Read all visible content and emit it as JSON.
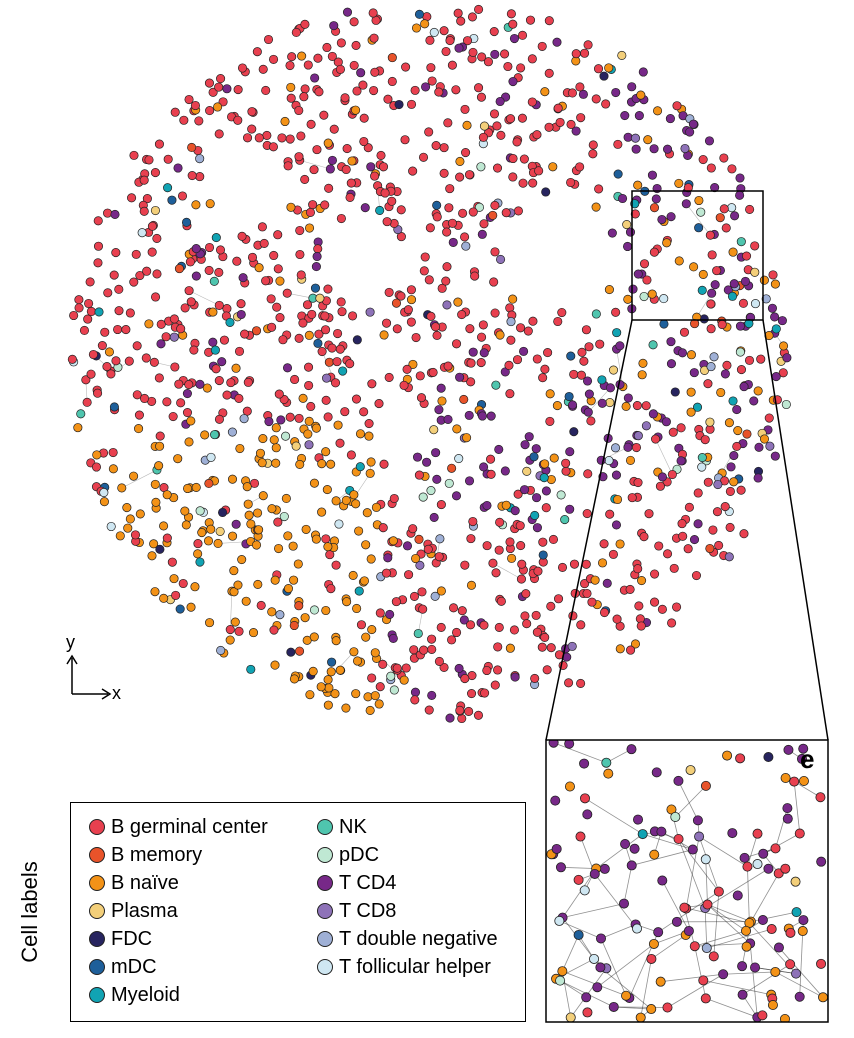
{
  "panel_letter": "e",
  "axes": {
    "x": "x",
    "y": "y"
  },
  "legend": {
    "title": "Cell labels",
    "items": [
      {
        "label": "B germinal center",
        "color": "#e8404f"
      },
      {
        "label": "B memory",
        "color": "#e8532a"
      },
      {
        "label": "B naïve",
        "color": "#f39217"
      },
      {
        "label": "Plasma",
        "color": "#f3cf7a"
      },
      {
        "label": "FDC",
        "color": "#27245f"
      },
      {
        "label": "mDC",
        "color": "#1e5f9a"
      },
      {
        "label": "Myeloid",
        "color": "#11a3b3"
      },
      {
        "label": "NK",
        "color": "#4fc5ae"
      },
      {
        "label": "pDC",
        "color": "#bfe8d3"
      },
      {
        "label": "T CD4",
        "color": "#772888"
      },
      {
        "label": "T CD8",
        "color": "#8e72b8"
      },
      {
        "label": "T double negative",
        "color": "#9fb0d6"
      },
      {
        "label": "T follicular helper",
        "color": "#cfe7f2"
      }
    ]
  }
}
